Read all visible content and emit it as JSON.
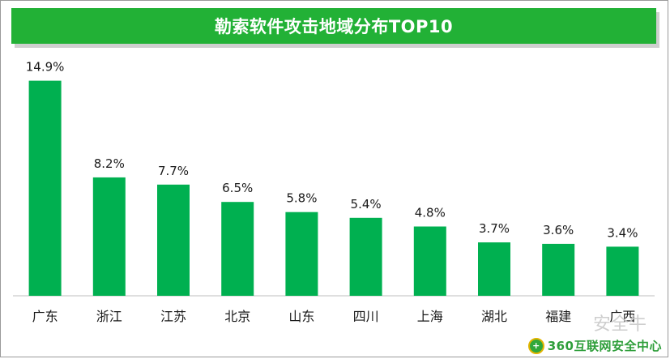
{
  "chart_data": {
    "type": "bar",
    "title": "勒索软件攻击地域分布TOP10",
    "categories": [
      "广东",
      "浙江",
      "江苏",
      "北京",
      "山东",
      "四川",
      "上海",
      "湖北",
      "福建",
      "广西"
    ],
    "values": [
      14.9,
      8.2,
      7.7,
      6.5,
      5.8,
      5.4,
      4.8,
      3.7,
      3.6,
      3.4
    ],
    "value_labels": [
      "14.9%",
      "8.2%",
      "7.7%",
      "6.5%",
      "5.8%",
      "5.4%",
      "4.8%",
      "3.7%",
      "3.6%",
      "3.4%"
    ],
    "xlabel": "",
    "ylabel": "",
    "ylim": [
      0,
      16
    ],
    "grid": false,
    "bar_color": "#00b050",
    "title_bg_color": "#22b136"
  },
  "watermark": {
    "logo_icon": "shield-logo-icon",
    "text": "360互联网安全中心",
    "stamp": "安全牛"
  }
}
